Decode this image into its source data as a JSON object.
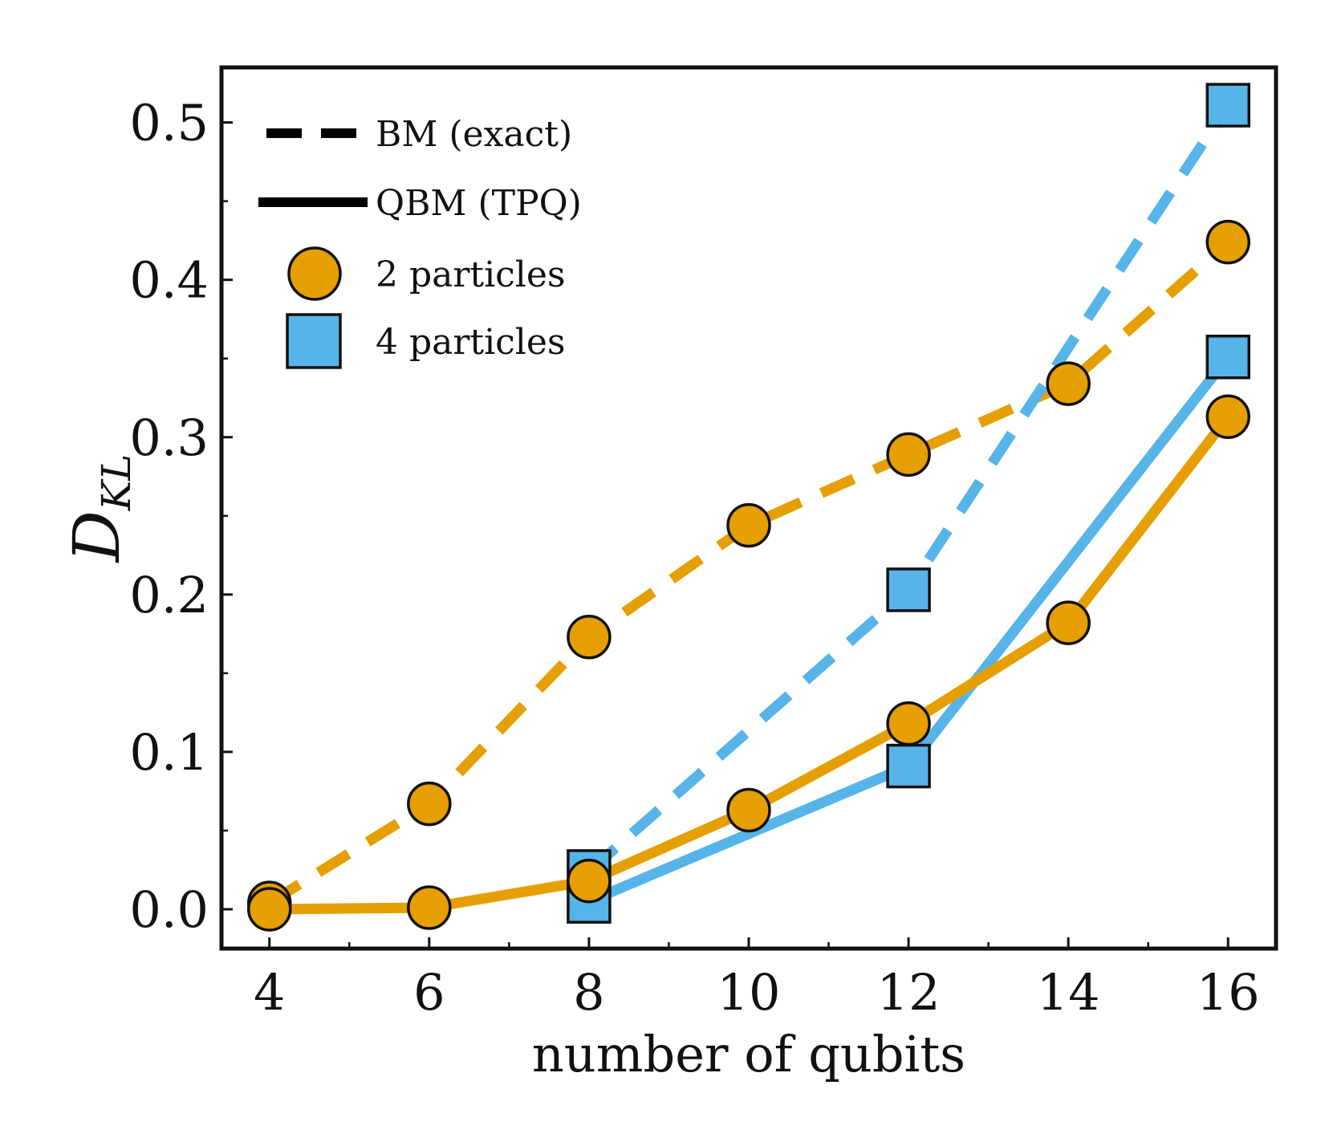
{
  "chart_data": {
    "type": "line",
    "title": "",
    "xlabel": "number of qubits",
    "ylabel_main": "D",
    "ylabel_sub": "KL",
    "xlim": [
      3.4,
      16.6
    ],
    "ylim": [
      -0.025,
      0.535
    ],
    "x_ticks": [
      4,
      6,
      8,
      10,
      12,
      14,
      16
    ],
    "x_minor_ticks": [
      5,
      7,
      9,
      11,
      13,
      15
    ],
    "y_ticks": [
      0.0,
      0.1,
      0.2,
      0.3,
      0.4,
      0.5
    ],
    "x_tick_labels": [
      "4",
      "6",
      "8",
      "10",
      "12",
      "14",
      "16"
    ],
    "y_tick_labels": [
      "0.0",
      "0.1",
      "0.2",
      "0.3",
      "0.4",
      "0.5"
    ],
    "grid": false,
    "legend_position": "top-left",
    "legend": [
      {
        "label": "BM (exact)",
        "kind": "dashed-line"
      },
      {
        "label": "QBM (TPQ)",
        "kind": "solid-line"
      },
      {
        "label": "2 particles",
        "kind": "circle-marker"
      },
      {
        "label": "4 particles",
        "kind": "square-marker"
      }
    ],
    "series": [
      {
        "name": "2 particles BM (exact)",
        "style": "dashed",
        "marker": "circle",
        "color": "#E69F00",
        "x": [
          4,
          6,
          8,
          10,
          12,
          14,
          16
        ],
        "y": [
          0.004,
          0.067,
          0.173,
          0.244,
          0.289,
          0.334,
          0.424
        ]
      },
      {
        "name": "4 particles BM (exact)",
        "style": "dashed",
        "marker": "square",
        "color": "#56B4E9",
        "x": [
          8,
          12,
          16
        ],
        "y": [
          0.024,
          0.203,
          0.511
        ]
      },
      {
        "name": "4 particles QBM (TPQ)",
        "style": "solid",
        "marker": "square",
        "color": "#56B4E9",
        "x": [
          8,
          12,
          16
        ],
        "y": [
          0.005,
          0.091,
          0.351
        ]
      },
      {
        "name": "2 particles QBM (TPQ)",
        "style": "solid",
        "marker": "circle",
        "color": "#E69F00",
        "x": [
          4,
          6,
          8,
          10,
          12,
          14,
          16
        ],
        "y": [
          0.0,
          0.001,
          0.018,
          0.063,
          0.118,
          0.182,
          0.313
        ]
      }
    ]
  }
}
